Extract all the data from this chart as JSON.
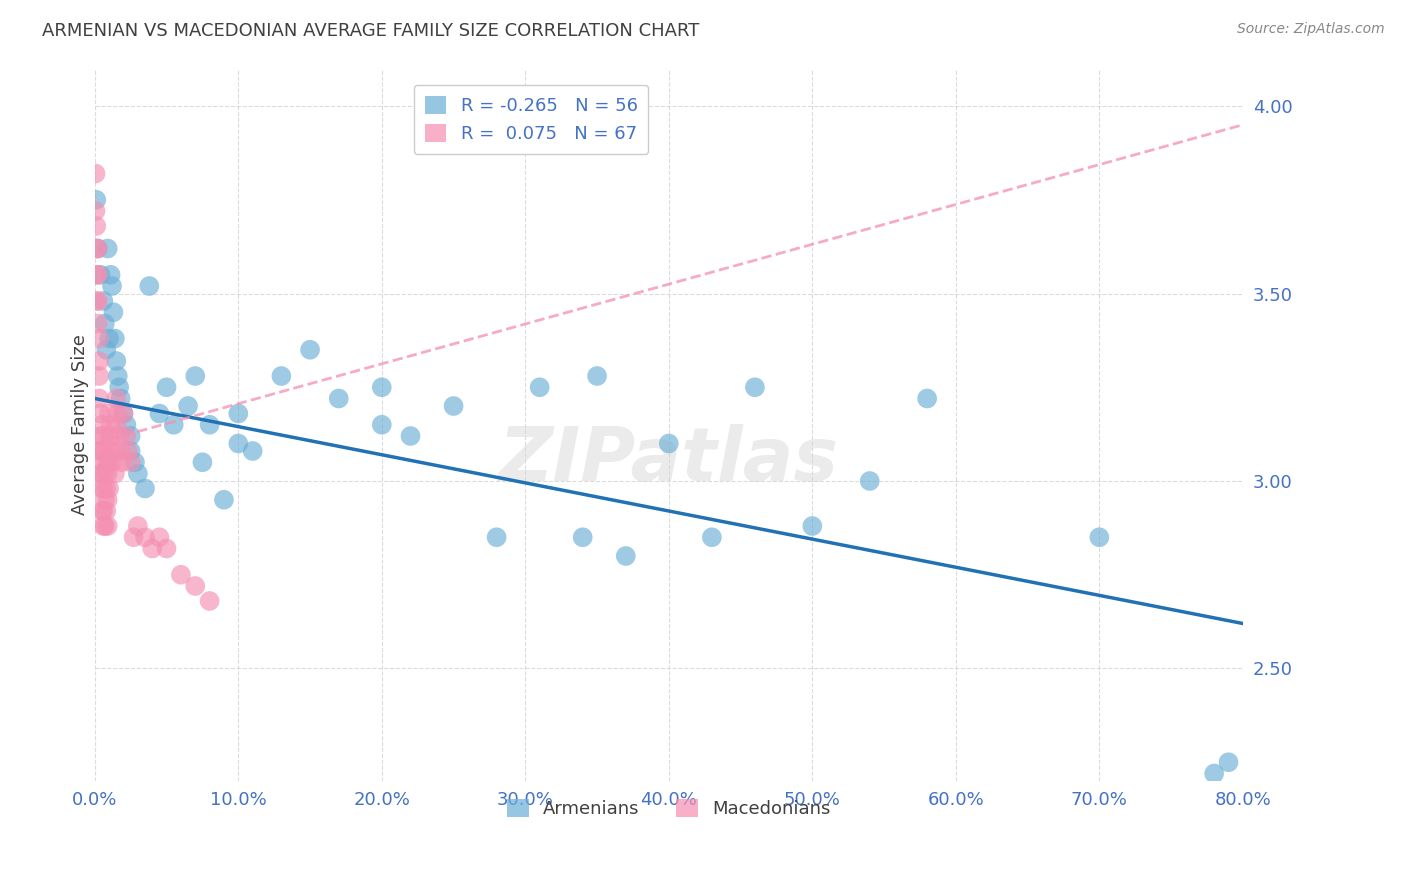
{
  "title": "ARMENIAN VS MACEDONIAN AVERAGE FAMILY SIZE CORRELATION CHART",
  "source": "Source: ZipAtlas.com",
  "ylabel": "Average Family Size",
  "xlabel_ticks": [
    "0.0%",
    "10.0%",
    "20.0%",
    "30.0%",
    "40.0%",
    "50.0%",
    "60.0%",
    "70.0%",
    "80.0%"
  ],
  "ytick_labels": [
    "2.50",
    "3.00",
    "3.50",
    "4.00"
  ],
  "ytick_values": [
    2.5,
    3.0,
    3.5,
    4.0
  ],
  "xlim": [
    0.0,
    0.8
  ],
  "ylim": [
    2.2,
    4.1
  ],
  "legend_entries": [
    {
      "label": "R = -0.265   N = 56",
      "color": "#a8c4e0"
    },
    {
      "label": "R =  0.075   N = 67",
      "color": "#f4a7b9"
    }
  ],
  "legend_bottom": [
    "Armenians",
    "Macedonians"
  ],
  "armenian_color": "#6baed6",
  "macedonian_color": "#f48fb1",
  "armenian_line_color": "#2171b5",
  "macedonian_line_color": "#f48fb1",
  "background_color": "#ffffff",
  "grid_color": "#cccccc",
  "axis_color": "#4472c4",
  "title_color": "#404040",
  "watermark": "ZIPatlas",
  "arm_line_x0": 0.0,
  "arm_line_y0": 3.22,
  "arm_line_x1": 0.8,
  "arm_line_y1": 2.62,
  "mac_line_x0": 0.0,
  "mac_line_y0": 3.1,
  "mac_line_x1": 0.8,
  "mac_line_y1": 3.95,
  "armenians_x": [
    0.001,
    0.002,
    0.004,
    0.006,
    0.007,
    0.008,
    0.009,
    0.01,
    0.011,
    0.012,
    0.013,
    0.014,
    0.015,
    0.016,
    0.017,
    0.018,
    0.02,
    0.022,
    0.025,
    0.025,
    0.028,
    0.03,
    0.035,
    0.038,
    0.045,
    0.05,
    0.055,
    0.065,
    0.07,
    0.075,
    0.08,
    0.09,
    0.1,
    0.11,
    0.13,
    0.15,
    0.17,
    0.2,
    0.22,
    0.25,
    0.28,
    0.31,
    0.34,
    0.37,
    0.4,
    0.43,
    0.46,
    0.5,
    0.54,
    0.58,
    0.1,
    0.2,
    0.35,
    0.7,
    0.78,
    0.79
  ],
  "armenians_y": [
    3.75,
    3.62,
    3.55,
    3.48,
    3.42,
    3.35,
    3.62,
    3.38,
    3.55,
    3.52,
    3.45,
    3.38,
    3.32,
    3.28,
    3.25,
    3.22,
    3.18,
    3.15,
    3.12,
    3.08,
    3.05,
    3.02,
    2.98,
    3.52,
    3.18,
    3.25,
    3.15,
    3.2,
    3.28,
    3.05,
    3.15,
    2.95,
    3.1,
    3.08,
    3.28,
    3.35,
    3.22,
    3.15,
    3.12,
    3.2,
    2.85,
    3.25,
    2.85,
    2.8,
    3.1,
    2.85,
    3.25,
    2.88,
    3.0,
    3.22,
    3.18,
    3.25,
    3.28,
    2.85,
    2.22,
    2.25
  ],
  "macedonians_x": [
    0.0005,
    0.0005,
    0.001,
    0.001,
    0.001,
    0.001,
    0.002,
    0.002,
    0.002,
    0.002,
    0.003,
    0.003,
    0.003,
    0.003,
    0.004,
    0.004,
    0.004,
    0.004,
    0.005,
    0.005,
    0.005,
    0.005,
    0.005,
    0.006,
    0.006,
    0.006,
    0.006,
    0.006,
    0.007,
    0.007,
    0.007,
    0.007,
    0.008,
    0.008,
    0.008,
    0.009,
    0.009,
    0.009,
    0.01,
    0.01,
    0.01,
    0.01,
    0.011,
    0.011,
    0.012,
    0.012,
    0.013,
    0.014,
    0.015,
    0.015,
    0.016,
    0.017,
    0.018,
    0.019,
    0.02,
    0.022,
    0.023,
    0.025,
    0.027,
    0.03,
    0.035,
    0.04,
    0.045,
    0.05,
    0.06,
    0.07,
    0.08
  ],
  "macedonians_y": [
    3.82,
    3.72,
    3.68,
    3.62,
    3.55,
    3.48,
    3.62,
    3.55,
    3.48,
    3.42,
    3.38,
    3.32,
    3.28,
    3.22,
    3.18,
    3.12,
    3.08,
    3.02,
    3.15,
    3.08,
    3.02,
    2.98,
    2.92,
    3.12,
    3.05,
    2.98,
    2.92,
    2.88,
    3.08,
    3.02,
    2.95,
    2.88,
    3.05,
    2.98,
    2.92,
    3.02,
    2.95,
    2.88,
    3.18,
    3.12,
    3.05,
    2.98,
    3.15,
    3.08,
    3.12,
    3.05,
    3.08,
    3.02,
    3.22,
    3.15,
    3.18,
    3.12,
    3.08,
    3.05,
    3.18,
    3.12,
    3.08,
    3.05,
    2.85,
    2.88,
    2.85,
    2.82,
    2.85,
    2.82,
    2.75,
    2.72,
    2.68
  ]
}
